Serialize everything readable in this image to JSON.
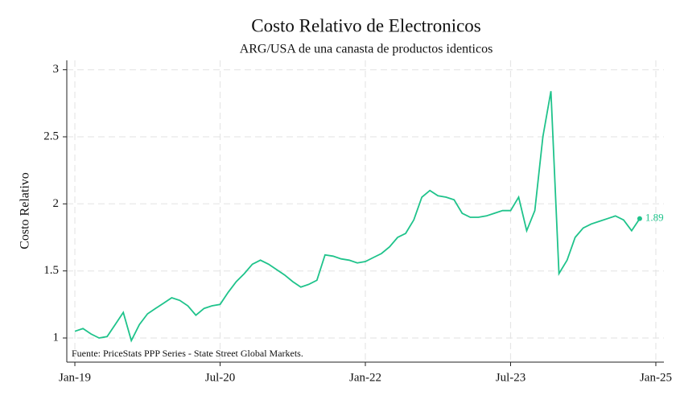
{
  "chart_data": {
    "type": "line",
    "title": "Costo Relativo de Electronicos",
    "subtitle": "ARG/USA de una canasta de productos identicos",
    "y_label": "Costo Relativo",
    "source": "Fuente: PriceStats PPP Series - State Street Global Markets.",
    "grid": true,
    "xlim": [
      "2018-12",
      "2025-02"
    ],
    "xticks": [
      {
        "value": "2019-01",
        "label": "Jan-19"
      },
      {
        "value": "2020-07",
        "label": "Jul-20"
      },
      {
        "value": "2022-01",
        "label": "Jan-22"
      },
      {
        "value": "2023-07",
        "label": "Jul-23"
      },
      {
        "value": "2025-01",
        "label": "Jan-25"
      }
    ],
    "ylim": [
      0.82,
      3.07
    ],
    "yticks": [
      1,
      1.5,
      2,
      2.5,
      3
    ],
    "x": [
      "2019-01",
      "2019-02",
      "2019-03",
      "2019-04",
      "2019-05",
      "2019-06",
      "2019-07",
      "2019-08",
      "2019-09",
      "2019-10",
      "2019-11",
      "2019-12",
      "2020-01",
      "2020-02",
      "2020-03",
      "2020-04",
      "2020-05",
      "2020-06",
      "2020-07",
      "2020-08",
      "2020-09",
      "2020-10",
      "2020-11",
      "2020-12",
      "2021-01",
      "2021-02",
      "2021-03",
      "2021-04",
      "2021-05",
      "2021-06",
      "2021-07",
      "2021-08",
      "2021-09",
      "2021-10",
      "2021-11",
      "2021-12",
      "2022-01",
      "2022-02",
      "2022-03",
      "2022-04",
      "2022-05",
      "2022-06",
      "2022-07",
      "2022-08",
      "2022-09",
      "2022-10",
      "2022-11",
      "2022-12",
      "2023-01",
      "2023-02",
      "2023-03",
      "2023-04",
      "2023-05",
      "2023-06",
      "2023-07",
      "2023-08",
      "2023-09",
      "2023-10",
      "2023-11",
      "2023-12",
      "2024-01",
      "2024-02",
      "2024-03",
      "2024-04",
      "2024-05",
      "2024-06",
      "2024-07",
      "2024-08",
      "2024-09",
      "2024-10",
      "2024-11"
    ],
    "series": [
      {
        "name": "ARG/USA",
        "color": "#1fc38b",
        "values": [
          1.05,
          1.07,
          1.03,
          1.0,
          1.01,
          1.1,
          1.19,
          0.98,
          1.1,
          1.18,
          1.22,
          1.26,
          1.3,
          1.28,
          1.24,
          1.17,
          1.22,
          1.24,
          1.25,
          1.34,
          1.42,
          1.48,
          1.55,
          1.58,
          1.55,
          1.51,
          1.47,
          1.42,
          1.38,
          1.4,
          1.43,
          1.62,
          1.61,
          1.59,
          1.58,
          1.56,
          1.57,
          1.6,
          1.63,
          1.68,
          1.75,
          1.78,
          1.88,
          2.05,
          2.1,
          2.06,
          2.05,
          2.03,
          1.93,
          1.9,
          1.9,
          1.91,
          1.93,
          1.95,
          1.95,
          2.05,
          1.8,
          1.95,
          2.5,
          2.84,
          1.48,
          1.58,
          1.75,
          1.82,
          1.85,
          1.87,
          1.89,
          1.91,
          1.88,
          1.8,
          1.89
        ]
      }
    ]
  }
}
